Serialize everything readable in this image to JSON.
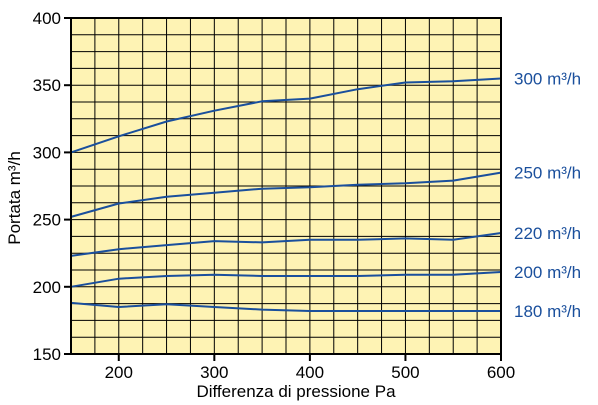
{
  "chart_data": {
    "type": "line",
    "xlabel": "Differenza di pressione Pa",
    "ylabel": "Portata m³/h",
    "xlim": [
      150,
      600
    ],
    "ylim": [
      150,
      400
    ],
    "x_ticks": [
      200,
      300,
      400,
      500,
      600
    ],
    "y_ticks": [
      150,
      200,
      250,
      300,
      350,
      400
    ],
    "x_minor_step": 25,
    "y_minor_step": 12.5,
    "grid": true,
    "plot_background": "#fef3b4",
    "grid_color": "#000000",
    "line_color": "#1a4f9c",
    "series": [
      {
        "name": "300 m³/h",
        "x": [
          150,
          200,
          250,
          300,
          350,
          400,
          450,
          500,
          550,
          600
        ],
        "y": [
          300,
          312,
          323,
          331,
          338,
          340,
          347,
          352,
          353,
          355
        ]
      },
      {
        "name": "250 m³/h",
        "x": [
          150,
          200,
          250,
          300,
          350,
          400,
          450,
          500,
          550,
          600
        ],
        "y": [
          252,
          262,
          267,
          270,
          273,
          274,
          276,
          277,
          279,
          285
        ]
      },
      {
        "name": "220 m³/h",
        "x": [
          150,
          200,
          250,
          300,
          350,
          400,
          450,
          500,
          550,
          600
        ],
        "y": [
          223,
          228,
          231,
          234,
          233,
          235,
          235,
          236,
          235,
          240
        ]
      },
      {
        "name": "200 m³/h",
        "x": [
          150,
          200,
          250,
          300,
          350,
          400,
          450,
          500,
          550,
          600
        ],
        "y": [
          200,
          206,
          208,
          209,
          208,
          208,
          208,
          209,
          209,
          211
        ]
      },
      {
        "name": "180 m³/h",
        "x": [
          150,
          200,
          250,
          300,
          350,
          400,
          450,
          500,
          550,
          600
        ],
        "y": [
          188,
          185,
          187,
          185,
          183,
          182,
          182,
          182,
          182,
          182
        ]
      }
    ]
  }
}
